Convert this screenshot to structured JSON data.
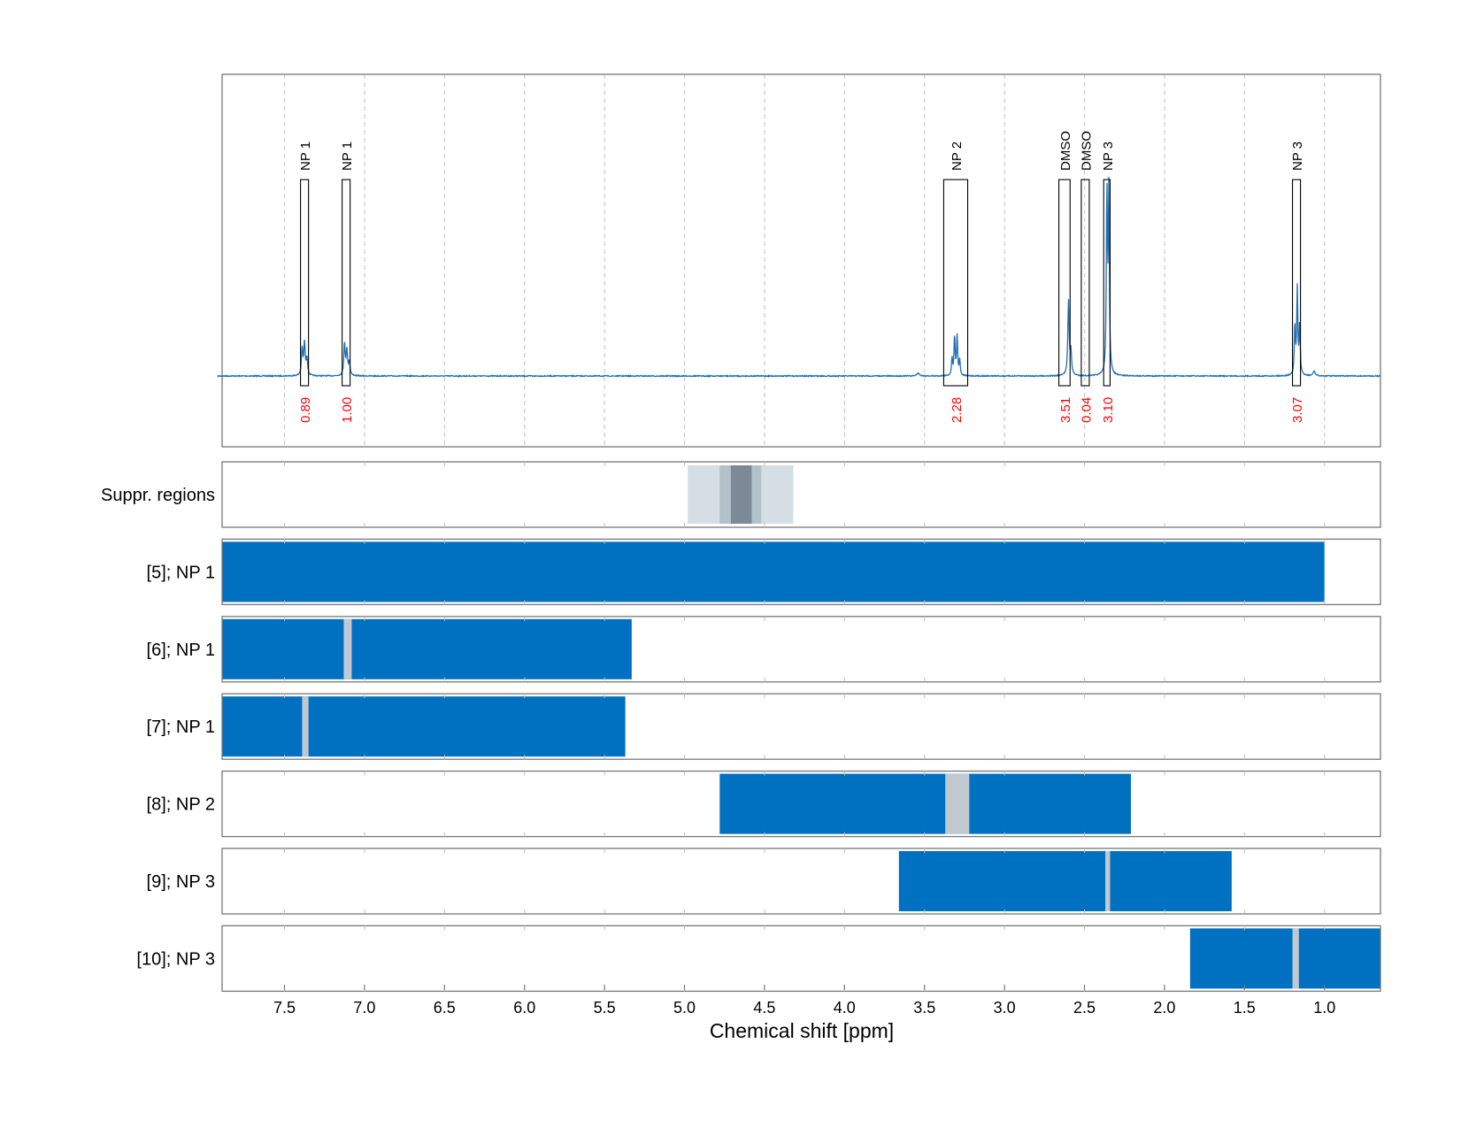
{
  "chart_data": {
    "type": "nmr-spectrum-with-region-tracks",
    "xlabel": "Chemical shift [ppm]",
    "xlim": [
      7.89,
      0.65
    ],
    "x_ticks": [
      7.5,
      7.0,
      6.5,
      6.0,
      5.5,
      5.0,
      4.5,
      4.0,
      3.5,
      3.0,
      2.5,
      2.0,
      1.5,
      1.0
    ],
    "x_tick_labels": [
      "7.5",
      "7.0",
      "6.5",
      "6.0",
      "5.5",
      "5.0",
      "4.5",
      "4.0",
      "3.5",
      "3.0",
      "2.5",
      "2.0",
      "1.5",
      "1.0"
    ],
    "grid": "vertical dashed",
    "colors": {
      "spectrum": "#1f6fb5",
      "bar": "#0070c0",
      "gap": "#bfc9cf",
      "integral_label": "#ff0000",
      "suppr_light": "#d6dee5",
      "suppr_mid": "#b4c1cb",
      "suppr_dark": "#7b8a96",
      "frame": "#777777",
      "grid": "#c8c8c8"
    },
    "peaks": [
      {
        "ppm": 7.39,
        "height": 0.14,
        "width": 0.01
      },
      {
        "ppm": 7.375,
        "height": 0.17,
        "width": 0.01
      },
      {
        "ppm": 7.36,
        "height": 0.09,
        "width": 0.01
      },
      {
        "ppm": 7.125,
        "height": 0.17,
        "width": 0.01
      },
      {
        "ppm": 7.11,
        "height": 0.13,
        "width": 0.01
      },
      {
        "ppm": 7.095,
        "height": 0.07,
        "width": 0.01
      },
      {
        "ppm": 3.54,
        "height": 0.015,
        "width": 0.02
      },
      {
        "ppm": 3.328,
        "height": 0.09,
        "width": 0.008
      },
      {
        "ppm": 3.312,
        "height": 0.21,
        "width": 0.008
      },
      {
        "ppm": 3.296,
        "height": 0.21,
        "width": 0.008
      },
      {
        "ppm": 3.28,
        "height": 0.08,
        "width": 0.008
      },
      {
        "ppm": 2.6,
        "height": 0.39,
        "width": 0.01
      },
      {
        "ppm": 2.585,
        "height": 0.12,
        "width": 0.01
      },
      {
        "ppm": 2.36,
        "height": 0.95,
        "width": 0.008
      },
      {
        "ppm": 2.348,
        "height": 0.95,
        "width": 0.008
      },
      {
        "ppm": 1.185,
        "height": 0.26,
        "width": 0.008
      },
      {
        "ppm": 1.17,
        "height": 0.45,
        "width": 0.008
      },
      {
        "ppm": 1.155,
        "height": 0.26,
        "width": 0.008
      },
      {
        "ppm": 1.065,
        "height": 0.025,
        "width": 0.015
      }
    ],
    "integration_regions": [
      {
        "label": "NP 1",
        "from": 7.4,
        "to": 7.35,
        "box_height": 1.0,
        "integral": "0.89"
      },
      {
        "label": "NP 1",
        "from": 7.14,
        "to": 7.09,
        "box_height": 1.0,
        "integral": "1.00"
      },
      {
        "label": "NP 2",
        "from": 3.38,
        "to": 3.23,
        "box_height": 1.0,
        "integral": "2.28"
      },
      {
        "label": "DMSO",
        "from": 2.66,
        "to": 2.59,
        "box_height": 1.0,
        "integral": "3.51"
      },
      {
        "label": "DMSO",
        "from": 2.52,
        "to": 2.47,
        "box_height": 1.0,
        "integral": "0.04"
      },
      {
        "label": "NP 3",
        "from": 2.38,
        "to": 2.34,
        "box_height": 1.0,
        "integral": "3.10"
      },
      {
        "label": "NP 3",
        "from": 1.2,
        "to": 1.15,
        "box_height": 1.0,
        "integral": "3.07"
      }
    ],
    "tracks": [
      {
        "label": "Suppr. regions",
        "suppression": [
          {
            "from": 4.98,
            "to": 4.32,
            "level": "light"
          },
          {
            "from": 4.78,
            "to": 4.52,
            "level": "mid"
          },
          {
            "from": 4.71,
            "to": 4.58,
            "level": "dark"
          }
        ]
      },
      {
        "label": "[5]; NP 1",
        "from": 7.89,
        "to": 1.0,
        "gaps": []
      },
      {
        "label": "[6]; NP 1",
        "from": 7.89,
        "to": 5.33,
        "gaps": [
          {
            "from": 7.13,
            "to": 7.08
          }
        ]
      },
      {
        "label": "[7]; NP 1",
        "from": 7.89,
        "to": 5.37,
        "gaps": [
          {
            "from": 7.39,
            "to": 7.35
          }
        ]
      },
      {
        "label": "[8]; NP 2",
        "from": 4.78,
        "to": 2.21,
        "gaps": [
          {
            "from": 3.37,
            "to": 3.22
          }
        ]
      },
      {
        "label": "[9]; NP 3",
        "from": 3.66,
        "to": 1.58,
        "gaps": [
          {
            "from": 2.37,
            "to": 2.34
          }
        ]
      },
      {
        "label": "[10]; NP 3",
        "from": 1.84,
        "to": 0.65,
        "gaps": [
          {
            "from": 1.2,
            "to": 1.16
          }
        ]
      }
    ]
  }
}
